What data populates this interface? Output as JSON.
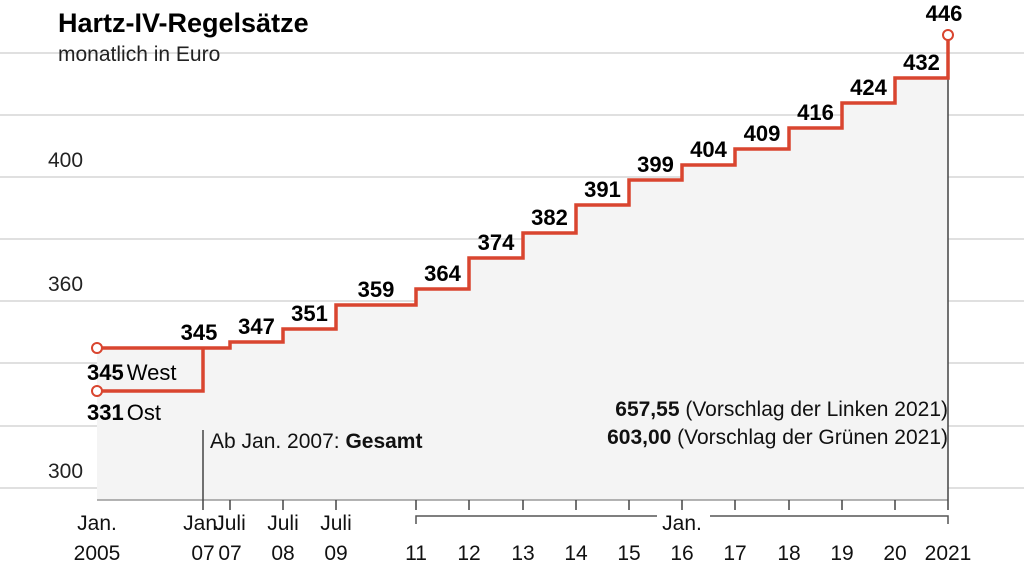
{
  "chart_data": {
    "type": "line",
    "title": "Hartz-IV-Regelsätze",
    "subtitle": "monatlich in Euro",
    "yticks": [
      300,
      360,
      400
    ],
    "ylim": [
      296,
      452
    ],
    "grid": true,
    "x_tick_labels": [
      {
        "year": 2005.0,
        "line1": "Jan.",
        "line2": "2005"
      },
      {
        "year": 2007.0,
        "line1": "Jan.",
        "line2": "07"
      },
      {
        "year": 2007.5,
        "line1": "Juli",
        "line2": "07"
      },
      {
        "year": 2008.5,
        "line1": "Juli",
        "line2": "08"
      },
      {
        "year": 2009.5,
        "line1": "Juli",
        "line2": "09"
      },
      {
        "year": 2011.0,
        "line1": "",
        "line2": "11"
      },
      {
        "year": 2012.0,
        "line1": "",
        "line2": "12"
      },
      {
        "year": 2013.0,
        "line1": "",
        "line2": "13"
      },
      {
        "year": 2014.0,
        "line1": "",
        "line2": "14"
      },
      {
        "year": 2015.0,
        "line1": "",
        "line2": "15"
      },
      {
        "year": 2016.0,
        "line1": "Jan.",
        "line2": "16"
      },
      {
        "year": 2017.0,
        "line1": "",
        "line2": "17"
      },
      {
        "year": 2018.0,
        "line1": "",
        "line2": "18"
      },
      {
        "year": 2019.0,
        "line1": "",
        "line2": "19"
      },
      {
        "year": 2020.0,
        "line1": "",
        "line2": "20"
      },
      {
        "year": 2021.0,
        "line1": "",
        "line2": "2021"
      }
    ],
    "series": [
      {
        "name": "West",
        "points": [
          {
            "x": 2005.0,
            "y": 345
          },
          {
            "x": 2007.0,
            "y": 345
          }
        ]
      },
      {
        "name": "Ost",
        "points": [
          {
            "x": 2005.0,
            "y": 331
          },
          {
            "x": 2007.0,
            "y": 331
          }
        ]
      },
      {
        "name": "Gesamt",
        "points": [
          {
            "x": 2007.0,
            "y": 345
          },
          {
            "x": 2007.5,
            "y": 347
          },
          {
            "x": 2008.5,
            "y": 351
          },
          {
            "x": 2009.5,
            "y": 359
          },
          {
            "x": 2011.0,
            "y": 364
          },
          {
            "x": 2012.0,
            "y": 374
          },
          {
            "x": 2013.0,
            "y": 382
          },
          {
            "x": 2014.0,
            "y": 391
          },
          {
            "x": 2015.0,
            "y": 399
          },
          {
            "x": 2016.0,
            "y": 404
          },
          {
            "x": 2017.0,
            "y": 409
          },
          {
            "x": 2018.0,
            "y": 416
          },
          {
            "x": 2019.0,
            "y": 424
          },
          {
            "x": 2020.0,
            "y": 432
          },
          {
            "x": 2021.0,
            "y": 446
          }
        ]
      }
    ],
    "labels": {
      "west_value": "345",
      "west_name": "West",
      "ost_value": "331",
      "ost_name": "Ost",
      "values": [
        "345",
        "347",
        "351",
        "359",
        "364",
        "374",
        "382",
        "391",
        "399",
        "404",
        "409",
        "416",
        "424",
        "432",
        "446"
      ]
    },
    "annotations": {
      "gesamt_prefix": "Ab Jan. 2007: ",
      "gesamt_bold": "Gesamt",
      "linke_value": "657,55",
      "linke_text": " (Vorschlag der Linken 2021)",
      "gruene_value": "603,00",
      "gruene_text": " (Vorschlag der Grünen 2021)"
    },
    "colors": {
      "line": "#d9452f",
      "area": "#f4f4f4",
      "grid": "#d6d6d6",
      "axis": "#9a9a9a"
    }
  }
}
